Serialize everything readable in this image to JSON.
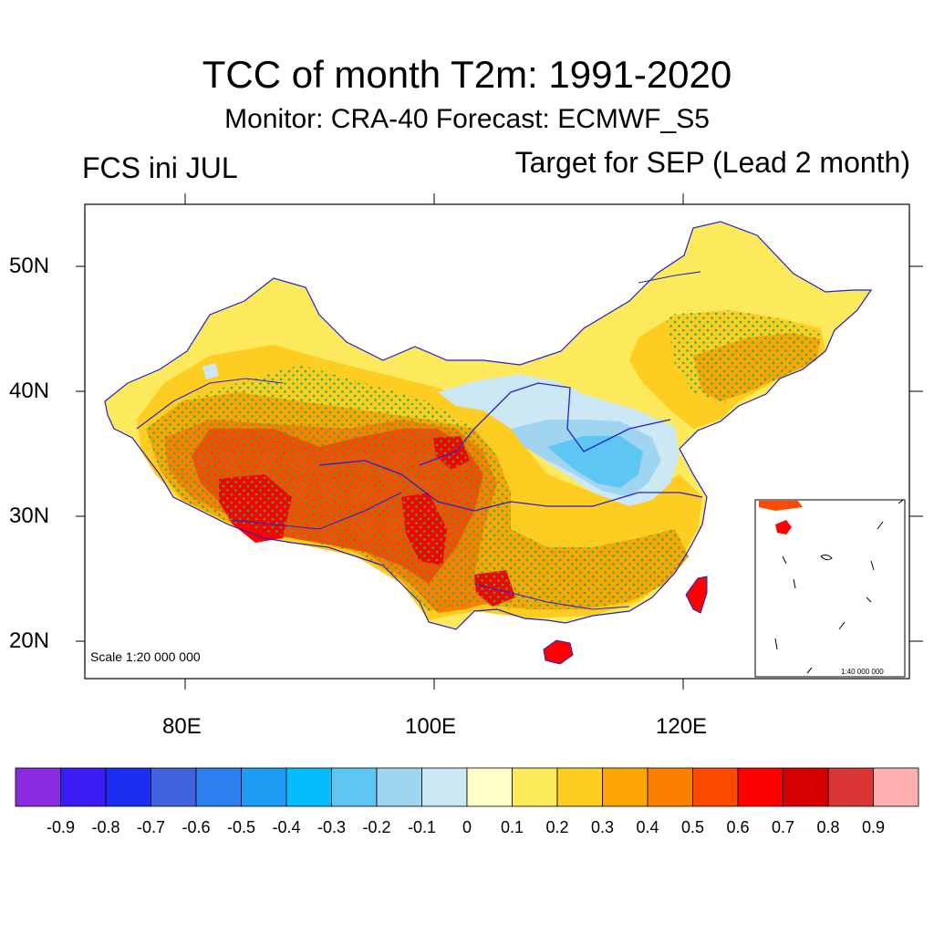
{
  "title": "TCC of month T2m: 1991-2020",
  "subtitle": "Monitor: CRA-40   Forecast: ECMWF_S5",
  "left_label": "FCS ini JUL",
  "right_label": "Target for SEP (Lead 2 month)",
  "map": {
    "lat_labels": [
      "50N",
      "40N",
      "30N",
      "20N"
    ],
    "lon_labels": [
      "80E",
      "100E",
      "120E"
    ],
    "scale_main": "Scale 1:20 000 000",
    "scale_inset": "1:40 000 000",
    "stippling_color": "#21b44a",
    "boundary_color": "#2222cc"
  },
  "colorbar": {
    "colors": [
      "#8a2be2",
      "#3b1cf5",
      "#1c2cf0",
      "#4062dd",
      "#2c7ff0",
      "#1e9bf5",
      "#05bdfd",
      "#5ec6f2",
      "#9fd5f0",
      "#cce8f4",
      "#feffc6",
      "#fde95c",
      "#fdcd22",
      "#fda503",
      "#fd7f00",
      "#fd4a00",
      "#fd0000",
      "#d60000",
      "#d93535",
      "#fdaeae"
    ],
    "labels": [
      "-0.9",
      "-0.8",
      "-0.7",
      "-0.6",
      "-0.5",
      "-0.4",
      "-0.3",
      "-0.2",
      "-0.1",
      "0",
      "0.1",
      "0.2",
      "0.3",
      "0.4",
      "0.5",
      "0.6",
      "0.7",
      "0.8",
      "0.9"
    ]
  }
}
